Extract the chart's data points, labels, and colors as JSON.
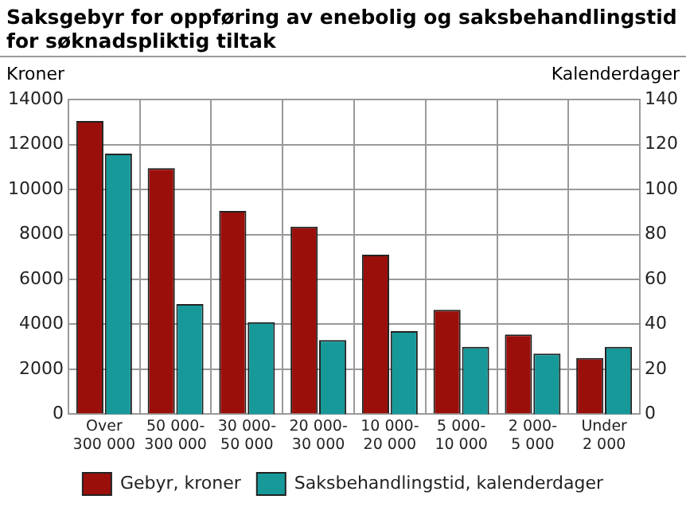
{
  "chart_data": {
    "type": "bar",
    "title": "Saksgebyr for oppføring av enebolig og saksbehandlingstid for søknadspliktig tiltak",
    "ylabel": "Kroner",
    "y2label": "Kalenderdager",
    "categories": [
      "Over\n300 000",
      "50 000-\n300 000",
      "30 000-\n50 000",
      "20 000-\n30 000",
      "10 000-\n20 000",
      "5 000-\n10 000",
      "2 000-\n5 000",
      "Under\n2 000"
    ],
    "series": [
      {
        "name": "Gebyr, kroner",
        "color": "#9b0f0b",
        "values": [
          13050,
          10950,
          9050,
          8350,
          7100,
          4650,
          3550,
          2500
        ]
      },
      {
        "name": "Saksbehandlingstid, kalenderdager",
        "color": "#17999a",
        "axis": "y2",
        "values": [
          116,
          49,
          41,
          33,
          37,
          30,
          27,
          30
        ]
      }
    ],
    "ylim": [
      0,
      14000
    ],
    "yticks": [
      0,
      2000,
      4000,
      6000,
      8000,
      10000,
      12000,
      14000
    ],
    "y2lim": [
      0,
      140
    ],
    "y2ticks": [
      0,
      20,
      40,
      60,
      80,
      100,
      120,
      140
    ],
    "grid": true,
    "legend": "bottom"
  }
}
